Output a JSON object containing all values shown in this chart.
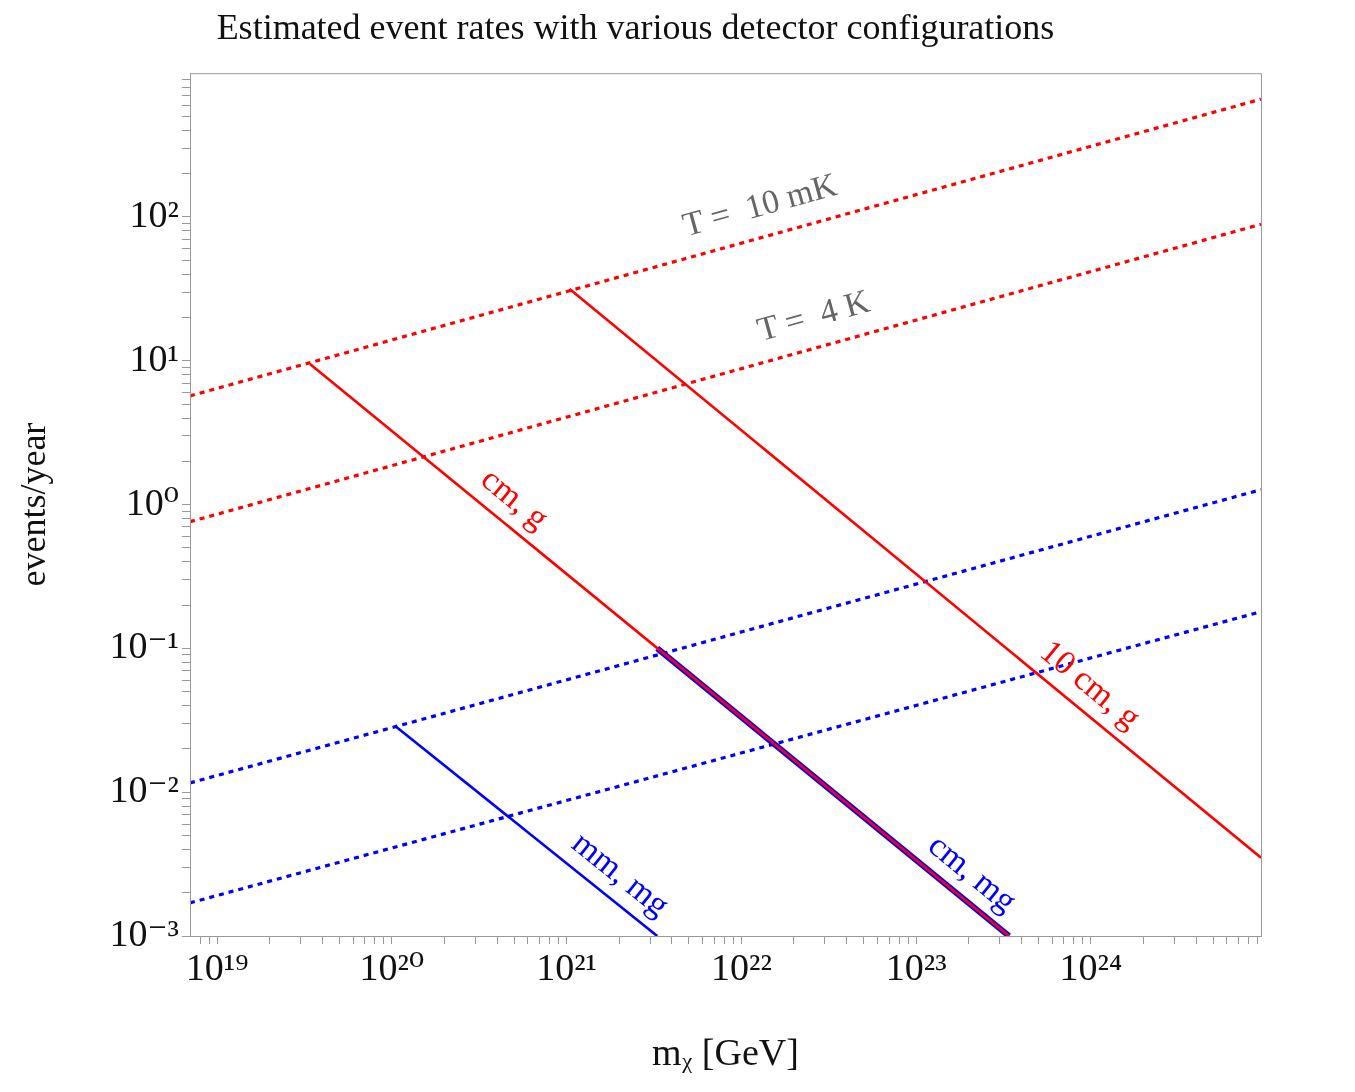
{
  "chart_data": {
    "type": "line",
    "title": "Estimated event rates with various detector configurations",
    "xlabel": "mᵪ [GeV]",
    "ylabel": "events/year",
    "log": "xy",
    "xlim": [
      7e+18,
      9.4e+24
    ],
    "ylim": [
      0.001,
      1000
    ],
    "xticks": [
      {
        "value": 8e+18,
        "label": null
      },
      {
        "value": 9e+18,
        "label": null
      },
      {
        "value": 1e+19,
        "label": "10¹⁹"
      },
      {
        "value": 2e+19,
        "label": null
      },
      {
        "value": 3e+19,
        "label": null
      },
      {
        "value": 4e+19,
        "label": null
      },
      {
        "value": 5e+19,
        "label": null
      },
      {
        "value": 6e+19,
        "label": null
      },
      {
        "value": 7e+19,
        "label": null
      },
      {
        "value": 8e+19,
        "label": null
      },
      {
        "value": 9e+19,
        "label": null
      },
      {
        "value": 1e+20,
        "label": "10²⁰"
      },
      {
        "value": 2e+20,
        "label": null
      },
      {
        "value": 3e+20,
        "label": null
      },
      {
        "value": 4e+20,
        "label": null
      },
      {
        "value": 5e+20,
        "label": null
      },
      {
        "value": 6e+20,
        "label": null
      },
      {
        "value": 7e+20,
        "label": null
      },
      {
        "value": 8e+20,
        "label": null
      },
      {
        "value": 9e+20,
        "label": null
      },
      {
        "value": 1e+21,
        "label": "10²¹"
      },
      {
        "value": 2e+21,
        "label": null
      },
      {
        "value": 3e+21,
        "label": null
      },
      {
        "value": 4e+21,
        "label": null
      },
      {
        "value": 5e+21,
        "label": null
      },
      {
        "value": 6e+21,
        "label": null
      },
      {
        "value": 7e+21,
        "label": null
      },
      {
        "value": 8e+21,
        "label": null
      },
      {
        "value": 9e+21,
        "label": null
      },
      {
        "value": 1e+22,
        "label": "10²²"
      },
      {
        "value": 2e+22,
        "label": null
      },
      {
        "value": 3e+22,
        "label": null
      },
      {
        "value": 4e+22,
        "label": null
      },
      {
        "value": 5e+22,
        "label": null
      },
      {
        "value": 6e+22,
        "label": null
      },
      {
        "value": 7e+22,
        "label": null
      },
      {
        "value": 8e+22,
        "label": null
      },
      {
        "value": 9e+22,
        "label": null
      },
      {
        "value": 1e+23,
        "label": "10²³"
      },
      {
        "value": 2e+23,
        "label": null
      },
      {
        "value": 3e+23,
        "label": null
      },
      {
        "value": 4e+23,
        "label": null
      },
      {
        "value": 5e+23,
        "label": null
      },
      {
        "value": 6e+23,
        "label": null
      },
      {
        "value": 7e+23,
        "label": null
      },
      {
        "value": 8e+23,
        "label": null
      },
      {
        "value": 9e+23,
        "label": null
      },
      {
        "value": 1e+24,
        "label": "10²⁴"
      },
      {
        "value": 2e+24,
        "label": null
      },
      {
        "value": 3e+24,
        "label": null
      },
      {
        "value": 4e+24,
        "label": null
      },
      {
        "value": 5e+24,
        "label": null
      },
      {
        "value": 6e+24,
        "label": null
      },
      {
        "value": 7e+24,
        "label": null
      },
      {
        "value": 8e+24,
        "label": null
      },
      {
        "value": 9e+24,
        "label": null
      }
    ],
    "yticks": [
      {
        "value": 0.001,
        "label": "10⁻³"
      },
      {
        "value": 0.002,
        "label": null
      },
      {
        "value": 0.003,
        "label": null
      },
      {
        "value": 0.004,
        "label": null
      },
      {
        "value": 0.005,
        "label": null
      },
      {
        "value": 0.006,
        "label": null
      },
      {
        "value": 0.007,
        "label": null
      },
      {
        "value": 0.008,
        "label": null
      },
      {
        "value": 0.009,
        "label": null
      },
      {
        "value": 0.01,
        "label": "10⁻²"
      },
      {
        "value": 0.02,
        "label": null
      },
      {
        "value": 0.03,
        "label": null
      },
      {
        "value": 0.04,
        "label": null
      },
      {
        "value": 0.05,
        "label": null
      },
      {
        "value": 0.06,
        "label": null
      },
      {
        "value": 0.07,
        "label": null
      },
      {
        "value": 0.08,
        "label": null
      },
      {
        "value": 0.09,
        "label": null
      },
      {
        "value": 0.1,
        "label": "10⁻¹"
      },
      {
        "value": 0.2,
        "label": null
      },
      {
        "value": 0.3,
        "label": null
      },
      {
        "value": 0.4,
        "label": null
      },
      {
        "value": 0.5,
        "label": null
      },
      {
        "value": 0.6,
        "label": null
      },
      {
        "value": 0.7,
        "label": null
      },
      {
        "value": 0.8,
        "label": null
      },
      {
        "value": 0.9,
        "label": null
      },
      {
        "value": 1,
        "label": "10⁰"
      },
      {
        "value": 2,
        "label": null
      },
      {
        "value": 3,
        "label": null
      },
      {
        "value": 4,
        "label": null
      },
      {
        "value": 5,
        "label": null
      },
      {
        "value": 6,
        "label": null
      },
      {
        "value": 7,
        "label": null
      },
      {
        "value": 8,
        "label": null
      },
      {
        "value": 9,
        "label": null
      },
      {
        "value": 10,
        "label": "10¹"
      },
      {
        "value": 20,
        "label": null
      },
      {
        "value": 30,
        "label": null
      },
      {
        "value": 40,
        "label": null
      },
      {
        "value": 50,
        "label": null
      },
      {
        "value": 60,
        "label": null
      },
      {
        "value": 70,
        "label": null
      },
      {
        "value": 80,
        "label": null
      },
      {
        "value": 90,
        "label": null
      },
      {
        "value": 100,
        "label": "10²"
      },
      {
        "value": 200,
        "label": null
      },
      {
        "value": 300,
        "label": null
      },
      {
        "value": 400,
        "label": null
      },
      {
        "value": 500,
        "label": null
      },
      {
        "value": 600,
        "label": null
      },
      {
        "value": 700,
        "label": null
      },
      {
        "value": 800,
        "label": null
      },
      {
        "value": 900,
        "label": null
      }
    ],
    "series": [
      {
        "color": "#ff0000",
        "line_style": "dotted",
        "x": [
          7e+18,
          9.4e+24
        ],
        "values": [
          5.7,
          660
        ]
      },
      {
        "color": "#ff0000",
        "line_style": "dotted",
        "x": [
          7e+18,
          9.4e+24
        ],
        "values": [
          0.76,
          89
        ]
      },
      {
        "color": "#0000ff",
        "line_style": "dotted",
        "x": [
          7e+18,
          9.4e+24
        ],
        "values": [
          0.0116,
          1.27
        ]
      },
      {
        "color": "#0000ff",
        "line_style": "dotted",
        "x": [
          7e+18,
          9.4e+24
        ],
        "values": [
          0.0017,
          0.18
        ]
      },
      {
        "name": "cm, mg",
        "color": "#0000ff",
        "line_style": "solid",
        "x": [
          3.3e+21,
          3.4e+23
        ],
        "values": [
          0.1,
          0.001
        ]
      },
      {
        "name": "cm, g",
        "color": "#ff0000",
        "line_style": "solid",
        "x": [
          3.4e+19,
          3.4e+23
        ],
        "values": [
          9.5,
          0.001
        ]
      },
      {
        "name": "10 cm, g",
        "color": "#ff0000",
        "line_style": "solid",
        "x": [
          1.04e+21,
          9.4e+24
        ],
        "values": [
          31.6,
          0.0035
        ]
      },
      {
        "name": "mm, mg",
        "color": "#0000ff",
        "line_style": "solid",
        "x": [
          1.04e+20,
          3.3e+21
        ],
        "values": [
          0.029,
          0.001
        ]
      }
    ],
    "annotations": [
      "T =  10 mK",
      "T =  4 K"
    ]
  }
}
